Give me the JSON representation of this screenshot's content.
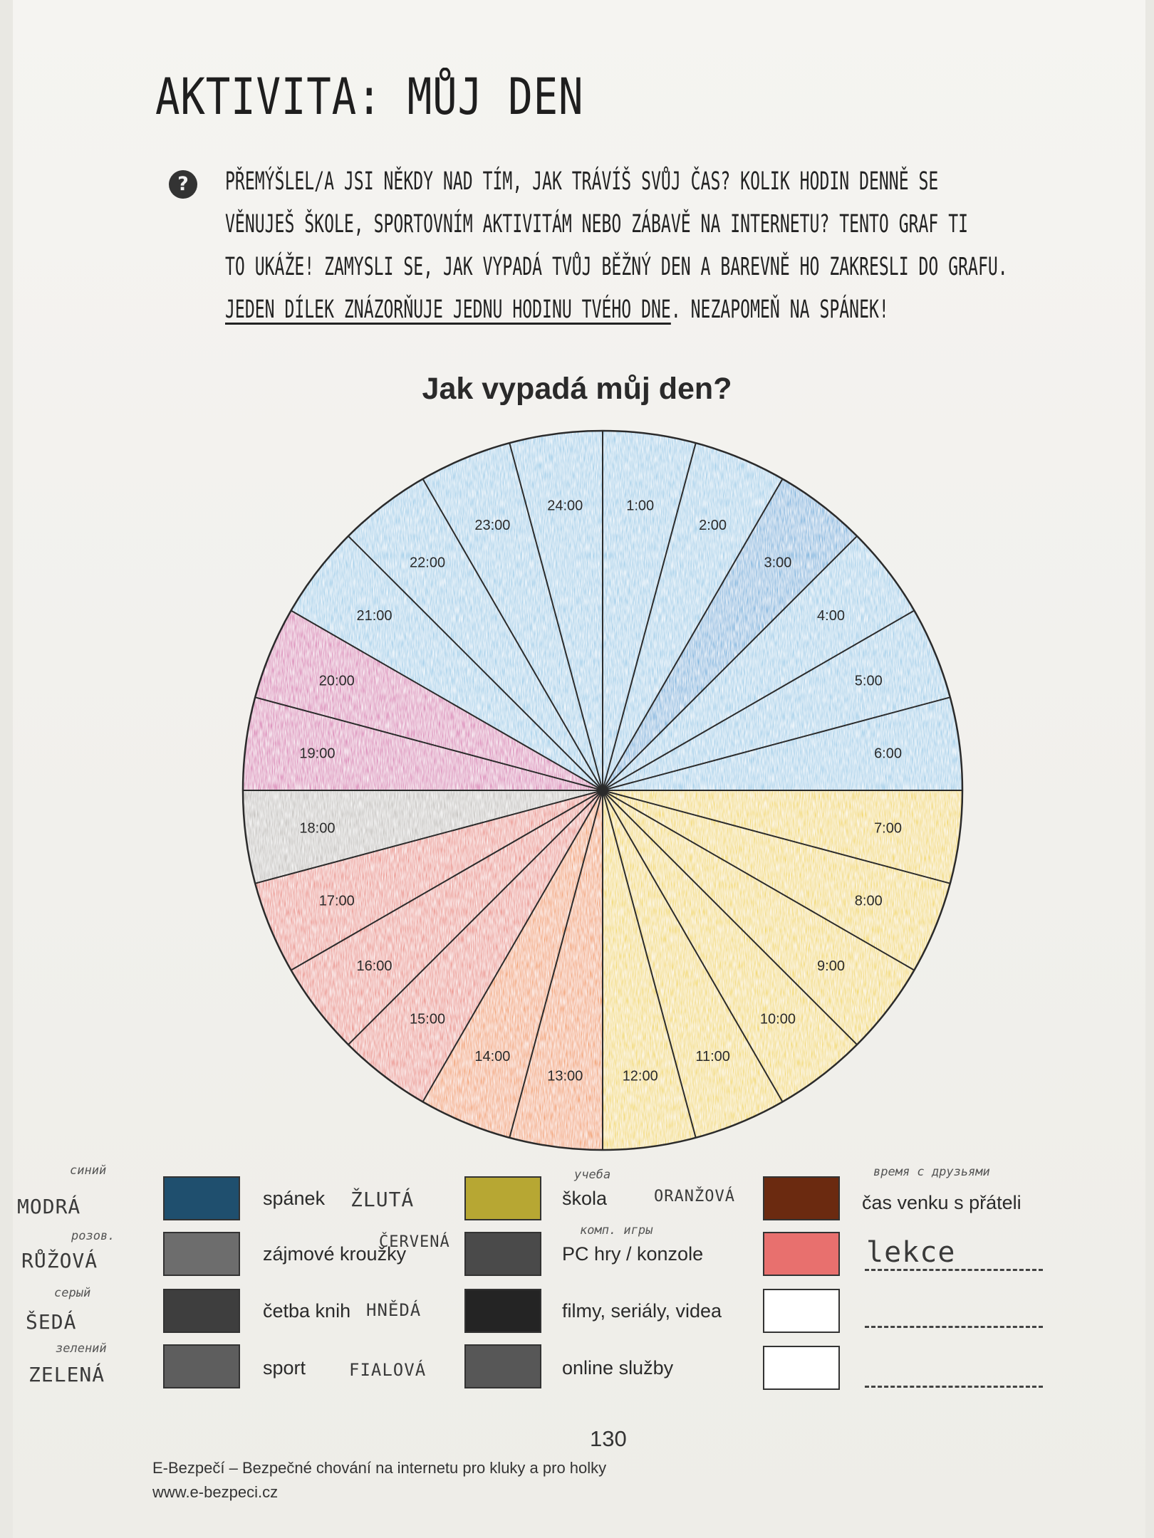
{
  "header": {
    "title": "AKTIVITA: MŮJ DEN",
    "help_icon": "question-circle-icon"
  },
  "intro": {
    "line1": "Přemýšlel/a jsi někdy nad tím, jak trávíš svůj čas? Kolik hodin denně se",
    "line2": "věnuješ škole, sportovním aktivitám nebo zábavě na internetu? Tento graf ti",
    "line3": "to ukáže! Zamysli se, jak vypadá tvůj běžný den a barevně ho zakresli do grafu.",
    "line4_underlined": "Jeden dílek znázorňuje jednu hodinu tvého dne",
    "line4_rest": ". Nezapomeň na spánek!"
  },
  "chart_data": {
    "type": "pie",
    "title": "Jak vypadá můj den?",
    "categories": [
      "1:00",
      "2:00",
      "3:00",
      "4:00",
      "5:00",
      "6:00",
      "7:00",
      "8:00",
      "9:00",
      "10:00",
      "11:00",
      "12:00",
      "13:00",
      "14:00",
      "15:00",
      "16:00",
      "17:00",
      "18:00",
      "19:00",
      "20:00",
      "21:00",
      "22:00",
      "23:00",
      "24:00"
    ],
    "values": [
      1,
      1,
      1,
      1,
      1,
      1,
      1,
      1,
      1,
      1,
      1,
      1,
      1,
      1,
      1,
      1,
      1,
      1,
      1,
      1,
      1,
      1,
      1,
      1
    ],
    "fill_colors": [
      "#8cc6e6",
      "#8cc6e6",
      "#4aa4d8",
      "#8cc6e6",
      "#8cc6e6",
      "#8cc6e6",
      "#f0d21c",
      "#f0d21c",
      "#f0d21c",
      "#f0d21c",
      "#f0d21c",
      "#f0d21c",
      "#f08a2a",
      "#f08a2a",
      "#e8766a",
      "#e8766a",
      "#e8766a",
      "#b9b6b2",
      "#d45ea8",
      "#d45ea8",
      "#8cc6e6",
      "#8cc6e6",
      "#8cc6e6",
      "#8cc6e6"
    ]
  },
  "legend": {
    "col1": [
      {
        "label": "spánek",
        "color": "#1f4f6e",
        "note": "MODRÁ",
        "note_small": "синий"
      },
      {
        "label": "zájmové kroužky",
        "color": "#6d6d6d",
        "note": "RŮŽOVÁ",
        "note_small": "розов."
      },
      {
        "label": "četba knih",
        "color": "#3e3e3e",
        "note": "ŠEDÁ",
        "note_small": "серый"
      },
      {
        "label": "sport",
        "color": "#5e5e5e",
        "note": "ZELENÁ",
        "note_small": "зелений"
      }
    ],
    "col2": [
      {
        "label": "škola",
        "color": "#b7a733",
        "note": "ŽLUTÁ",
        "note_small": "учеба"
      },
      {
        "label": "PC hry / konzole",
        "color": "#4a4a4a",
        "note": "ČERVENÁ",
        "note_small": "комп. игры"
      },
      {
        "label": "filmy, seriály, videa",
        "color": "#242424",
        "note": "HNĚDÁ",
        "note_small": ""
      },
      {
        "label": "online služby",
        "color": "#575757",
        "note": "FIALOVÁ",
        "note_small": ""
      }
    ],
    "col3": [
      {
        "label": "čas venku s přáteli",
        "color": "#6b2a10",
        "note": "ORANŽOVÁ",
        "note_small": "время с друзьями"
      },
      {
        "label": "lekce",
        "color": "#e8706e",
        "note": "",
        "note_small": ""
      },
      {
        "label": "",
        "color": "#ffffff",
        "note": "",
        "note_small": ""
      },
      {
        "label": "",
        "color": "#ffffff",
        "note": "",
        "note_small": ""
      }
    ]
  },
  "page": {
    "number": "130",
    "footer_line1": "E-Bezpečí – Bezpečné chování na internetu pro kluky a pro holky",
    "footer_line2": "www.e-bezpeci.cz"
  }
}
